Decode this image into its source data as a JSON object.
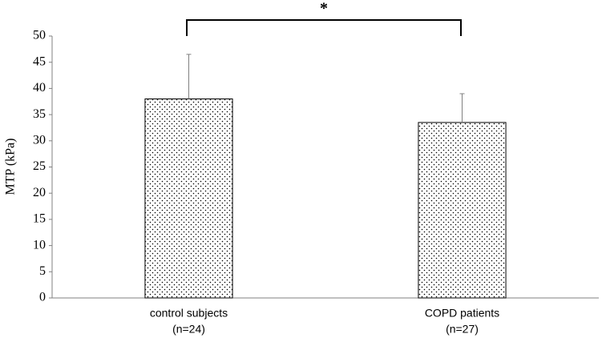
{
  "chart_data": {
    "type": "bar",
    "categories": [
      [
        "control subjects",
        "(n=24)"
      ],
      [
        "COPD patients",
        "(n=27)"
      ]
    ],
    "values": [
      38,
      33.5
    ],
    "errors": [
      8.5,
      5.5
    ],
    "y_label": "MTP (kPa)",
    "annotation": "*",
    "ylim": [
      0,
      50
    ],
    "yticks": [
      0,
      5,
      10,
      15,
      20,
      25,
      30,
      35,
      40,
      45,
      50
    ],
    "color": "#000000",
    "error_color": "#808080"
  }
}
